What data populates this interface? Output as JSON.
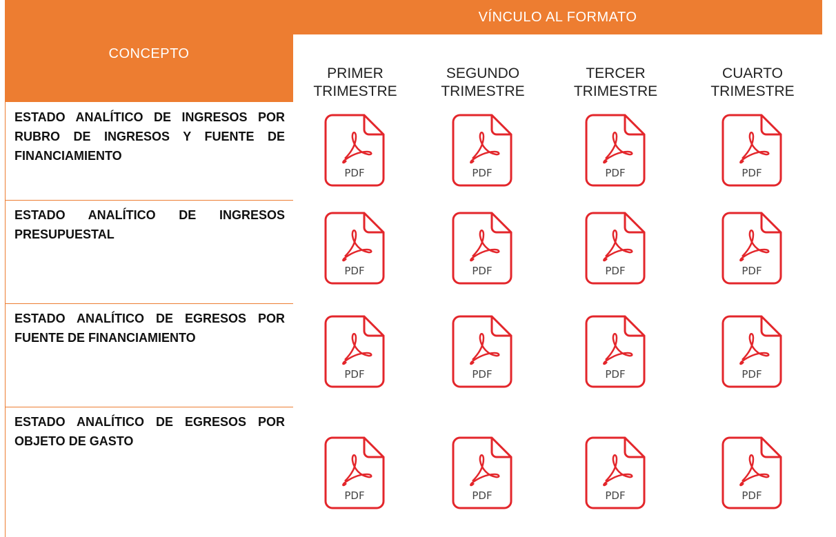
{
  "header": {
    "concept": "CONCEPTO",
    "link_title": "VÍNCULO AL FORMATO",
    "quarters": [
      "PRIMER TRIMESTRE",
      "SEGUNDO TRIMESTRE",
      "TERCER TRIMESTRE",
      "CUARTO TRIMESTRE"
    ]
  },
  "icon_label": "PDF",
  "table": {
    "rows": [
      "ESTADO ANALÍTICO DE INGRESOS POR RUBRO DE INGRESOS Y FUENTE DE FINANCIAMIENTO",
      "ESTADO ANALÍTICO DE INGRESOS PRESUPUESTAL",
      "ESTADO ANALÍTICO DE EGRESOS POR FUENTE DE FINANCIAMIENTO",
      "ESTADO ANALÍTICO DE EGRESOS POR OBJETO DE GASTO"
    ]
  }
}
